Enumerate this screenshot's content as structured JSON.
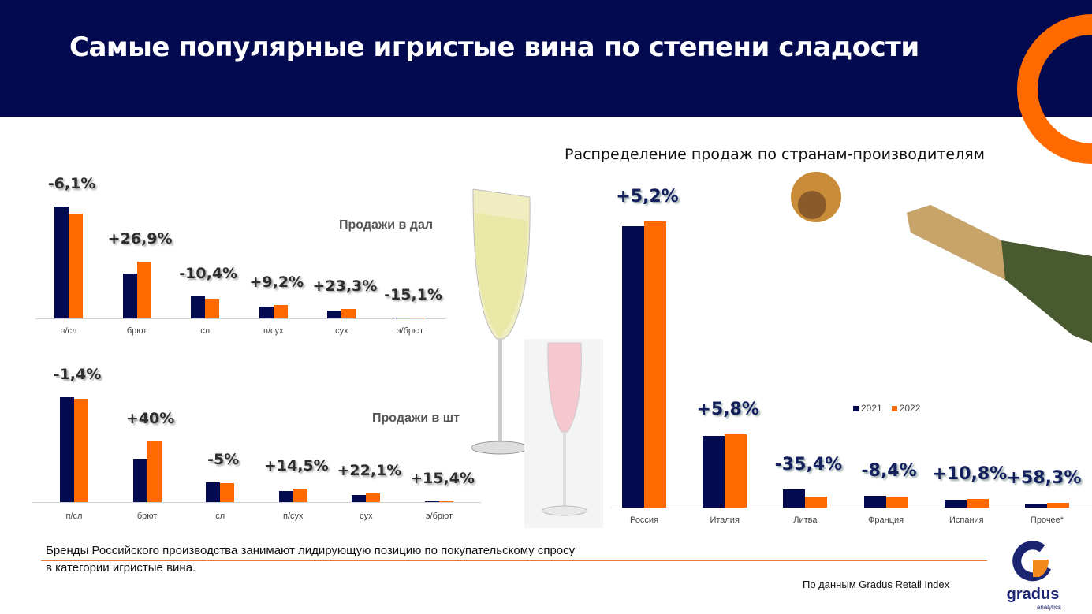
{
  "header": {
    "title": "Самые популярные игристые вина по степени сладости"
  },
  "colors": {
    "navy": "#040a50",
    "accent": "#ff6a00",
    "series_2021": "#040a50",
    "series_2022": "#ff6a00"
  },
  "chart_data": [
    {
      "type": "bar",
      "title": "Продажи в дал",
      "categories": [
        "п/сл",
        "брют",
        "сл",
        "п/сух",
        "сух",
        "э/брют"
      ],
      "series": [
        {
          "name": "2021",
          "values": [
            142,
            57,
            28,
            15,
            10,
            1
          ]
        },
        {
          "name": "2022",
          "values": [
            133,
            72,
            25,
            17,
            12,
            1
          ]
        }
      ],
      "data_labels": [
        "-6,1%",
        "+26,9%",
        "-10,4%",
        "+9,2%",
        "+23,3%",
        "-15,1%"
      ],
      "grid": false
    },
    {
      "type": "bar",
      "title": "Продажи в шт",
      "categories": [
        "п/сл",
        "брют",
        "сл",
        "п/сух",
        "сух",
        "э/брют"
      ],
      "series": [
        {
          "name": "2021",
          "values": [
            133,
            55,
            25,
            14,
            9,
            1
          ]
        },
        {
          "name": "2022",
          "values": [
            131,
            77,
            24,
            17,
            11,
            1
          ]
        }
      ],
      "data_labels": [
        "-1,4%",
        "+40%",
        "-5%",
        "+14,5%",
        "+22,1%",
        "+15,4%"
      ],
      "grid": false
    },
    {
      "type": "bar",
      "title": "Распределение продаж по странам-производителям",
      "categories": [
        "Россия",
        "Италия",
        "Литва",
        "Франция",
        "Испания",
        "Прочее*"
      ],
      "series": [
        {
          "name": "2021",
          "values": [
            357,
            91,
            23,
            15,
            10,
            4
          ]
        },
        {
          "name": "2022",
          "values": [
            363,
            93,
            14,
            13,
            11,
            6
          ]
        }
      ],
      "data_labels": [
        "+5,2%",
        "+5,8%",
        "-35,4%",
        "-8,4%",
        "+10,8%",
        "+58,3%"
      ],
      "legend": [
        "2021",
        "2022"
      ],
      "legend_position": "center-right",
      "grid": false
    }
  ],
  "footer": {
    "note": "Бренды Российского производства занимают лидирующую позицию по покупательскому спросу в категории игристые вина.",
    "source": "По данным Gradus Retail Index",
    "logo_text": "gradus",
    "logo_sub": "analytics"
  }
}
